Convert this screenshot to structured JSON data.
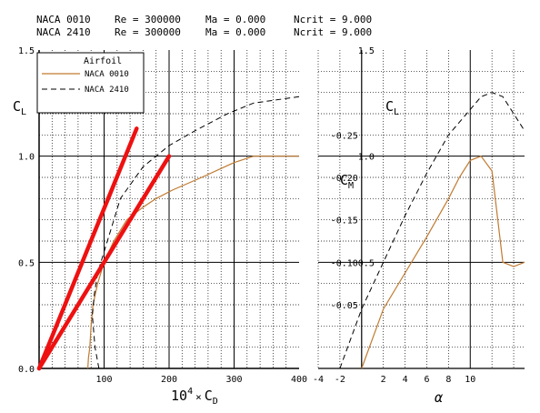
{
  "header": {
    "runs": [
      {
        "airfoil": "NACA 0010",
        "re": "Re = 300000",
        "ma": "Ma = 0.000",
        "ncrit": "Ncrit = 9.000"
      },
      {
        "airfoil": "NACA 2410",
        "re": "Re = 300000",
        "ma": "Ma = 0.000",
        "ncrit": "Ncrit = 9.000"
      }
    ]
  },
  "colors": {
    "naca0010": "#c07a30",
    "naca2410": "#000000",
    "tangent": "#ee1111",
    "grid": "#000000"
  },
  "chart_data": [
    {
      "id": "drag_polar",
      "type": "line",
      "xlabel_main": "10",
      "xlabel_exp": "4",
      "xlabel_times": "×",
      "xlabel_var": "C",
      "xlabel_sub": "D",
      "ylabel_var": "C",
      "ylabel_sub": "L",
      "xlim": [
        0,
        400
      ],
      "ylim": [
        0,
        1.5
      ],
      "xticks": [
        100,
        200,
        300,
        400
      ],
      "yticks": [
        "0.0",
        "0.5",
        "1.0",
        "1.5"
      ],
      "grid": true,
      "legend": {
        "title": "Airfoil",
        "position": "top-left",
        "entries": [
          "NACA 0010",
          "NACA 2410"
        ]
      },
      "series": [
        {
          "name": "NACA 0010",
          "style": "solid",
          "color": "#c07a30",
          "points": [
            [
              75,
              0
            ],
            [
              76,
              0.05
            ],
            [
              78,
              0.1
            ],
            [
              80,
              0.2
            ],
            [
              83,
              0.3
            ],
            [
              90,
              0.4
            ],
            [
              100,
              0.5
            ],
            [
              115,
              0.6
            ],
            [
              135,
              0.7
            ],
            [
              160,
              0.76
            ],
            [
              180,
              0.8
            ],
            [
              205,
              0.84
            ],
            [
              250,
              0.9
            ],
            [
              300,
              0.97
            ],
            [
              330,
              1.0
            ],
            [
              400,
              1.0
            ]
          ]
        },
        {
          "name": "NACA 2410",
          "style": "dashed",
          "color": "#000000",
          "points": [
            [
              92,
              0
            ],
            [
              86,
              0.1
            ],
            [
              82,
              0.25
            ],
            [
              85,
              0.35
            ],
            [
              90,
              0.45
            ],
            [
              100,
              0.55
            ],
            [
              110,
              0.65
            ],
            [
              125,
              0.8
            ],
            [
              160,
              0.95
            ],
            [
              200,
              1.05
            ],
            [
              240,
              1.12
            ],
            [
              290,
              1.2
            ],
            [
              330,
              1.25
            ],
            [
              400,
              1.28
            ]
          ]
        },
        {
          "name": "",
          "style": "tangent",
          "color": "#ee1111",
          "points": [
            [
              0,
              0
            ],
            [
              150,
              1.13
            ]
          ]
        },
        {
          "name": "",
          "style": "tangent",
          "color": "#ee1111",
          "points": [
            [
              0,
              0
            ],
            [
              200,
              1.0
            ]
          ]
        }
      ]
    },
    {
      "id": "lift_alpha",
      "type": "line",
      "xlabel": "α",
      "ylabel_cl_var": "C",
      "ylabel_cl_sub": "L",
      "ylabel_cm_var": "C",
      "ylabel_cm_sub": "M",
      "xlim": [
        -4,
        15
      ],
      "xticks": [
        "-4",
        "-2",
        "2",
        "4",
        "6",
        "8",
        "10"
      ],
      "cl_ticks": [
        "1.5",
        "1.0",
        "0.5"
      ],
      "cm_ticks": [
        "-0.25",
        "-0.20",
        "-0.15",
        "-0.10",
        "-0.05"
      ],
      "grid": true,
      "series": [
        {
          "name": "NACA 0010",
          "style": "solid",
          "color": "#c07a30",
          "points": [
            [
              0,
              0
            ],
            [
              2,
              0.28
            ],
            [
              4,
              0.45
            ],
            [
              6,
              0.62
            ],
            [
              8,
              0.8
            ],
            [
              9,
              0.9
            ],
            [
              10,
              0.98
            ],
            [
              11,
              1.0
            ],
            [
              12,
              0.93
            ],
            [
              13,
              0.5
            ],
            [
              14,
              0.48
            ],
            [
              15,
              0.5
            ]
          ]
        },
        {
          "name": "NACA 2410",
          "style": "dashed",
          "color": "#000000",
          "points": [
            [
              -2,
              0
            ],
            [
              0,
              0.28
            ],
            [
              2,
              0.5
            ],
            [
              4,
              0.72
            ],
            [
              6,
              0.92
            ],
            [
              8,
              1.1
            ],
            [
              10,
              1.22
            ],
            [
              11,
              1.28
            ],
            [
              12,
              1.3
            ],
            [
              13,
              1.28
            ],
            [
              15,
              1.12
            ]
          ]
        }
      ]
    }
  ]
}
